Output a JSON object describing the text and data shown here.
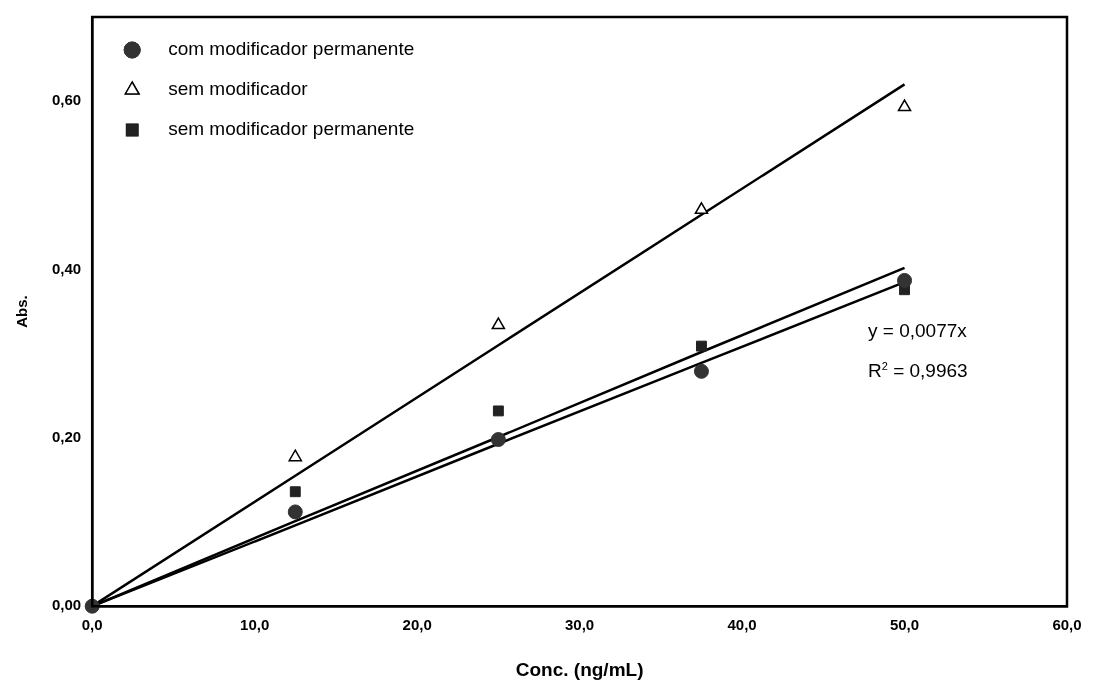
{
  "chart_data": {
    "type": "scatter",
    "xlabel": "Conc. (ng/mL)",
    "ylabel": "Abs.",
    "xlim": [
      0,
      60
    ],
    "ylim": [
      0,
      0.7
    ],
    "xticks": [
      {
        "value": 0,
        "label": "0,0"
      },
      {
        "value": 10,
        "label": "10,0"
      },
      {
        "value": 20,
        "label": "20,0"
      },
      {
        "value": 30,
        "label": "30,0"
      },
      {
        "value": 40,
        "label": "40,0"
      },
      {
        "value": 50,
        "label": "50,0"
      },
      {
        "value": 60,
        "label": "60,0"
      }
    ],
    "yticks": [
      {
        "value": 0,
        "label": "0,00"
      },
      {
        "value": 0.2,
        "label": "0,20"
      },
      {
        "value": 0.4,
        "label": "0,40"
      },
      {
        "value": 0.6,
        "label": "0,60"
      }
    ],
    "x": [
      0,
      12.5,
      25,
      37.5,
      50
    ],
    "series": [
      {
        "name": "com modificador permanente",
        "color": "#333333",
        "marker": "circle",
        "values": [
          0,
          0.112,
          0.198,
          0.279,
          0.387
        ]
      },
      {
        "name": "sem modificador",
        "color": "#000000",
        "marker": "triangle",
        "values": [
          null,
          0.177,
          0.334,
          0.471,
          0.593
        ]
      },
      {
        "name": "sem modificador permanente",
        "color": "#222222",
        "marker": "square",
        "values": [
          null,
          0.136,
          0.232,
          0.309,
          0.376
        ]
      },
      {
        "type": "line",
        "color": "#000000",
        "values": [
          0,
          0.096,
          0.193,
          0.289,
          0.385
        ]
      },
      {
        "type": "line",
        "color": "#000000",
        "values": [
          0,
          0.155,
          0.31,
          0.465,
          0.62
        ]
      },
      {
        "type": "line",
        "color": "#000000",
        "values": [
          0,
          0.101,
          0.201,
          0.302,
          0.402
        ]
      }
    ],
    "annotations": [
      "y = 0,0077x",
      "R$^{2}$ = 0,9963"
    ],
    "grid": false,
    "legend": "top left"
  }
}
